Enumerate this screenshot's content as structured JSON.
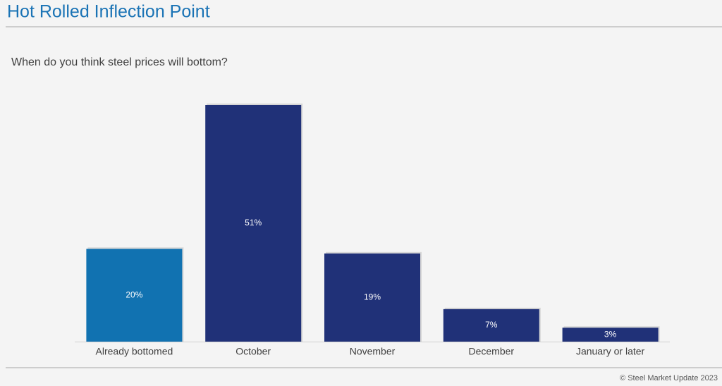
{
  "chart_data": {
    "type": "bar",
    "title": "Hot Rolled Inflection Point",
    "subtitle": "When do you think steel prices will bottom?",
    "categories": [
      "Already bottomed",
      "October",
      "November",
      "December",
      "January or later"
    ],
    "values": [
      20,
      51,
      19,
      7,
      3
    ],
    "value_labels": [
      "20%",
      "51%",
      "19%",
      "7%",
      "3%"
    ],
    "colors": [
      "#1172b1",
      "#203178",
      "#203178",
      "#203178",
      "#203178"
    ],
    "source": "© Steel Market Update 2023"
  }
}
